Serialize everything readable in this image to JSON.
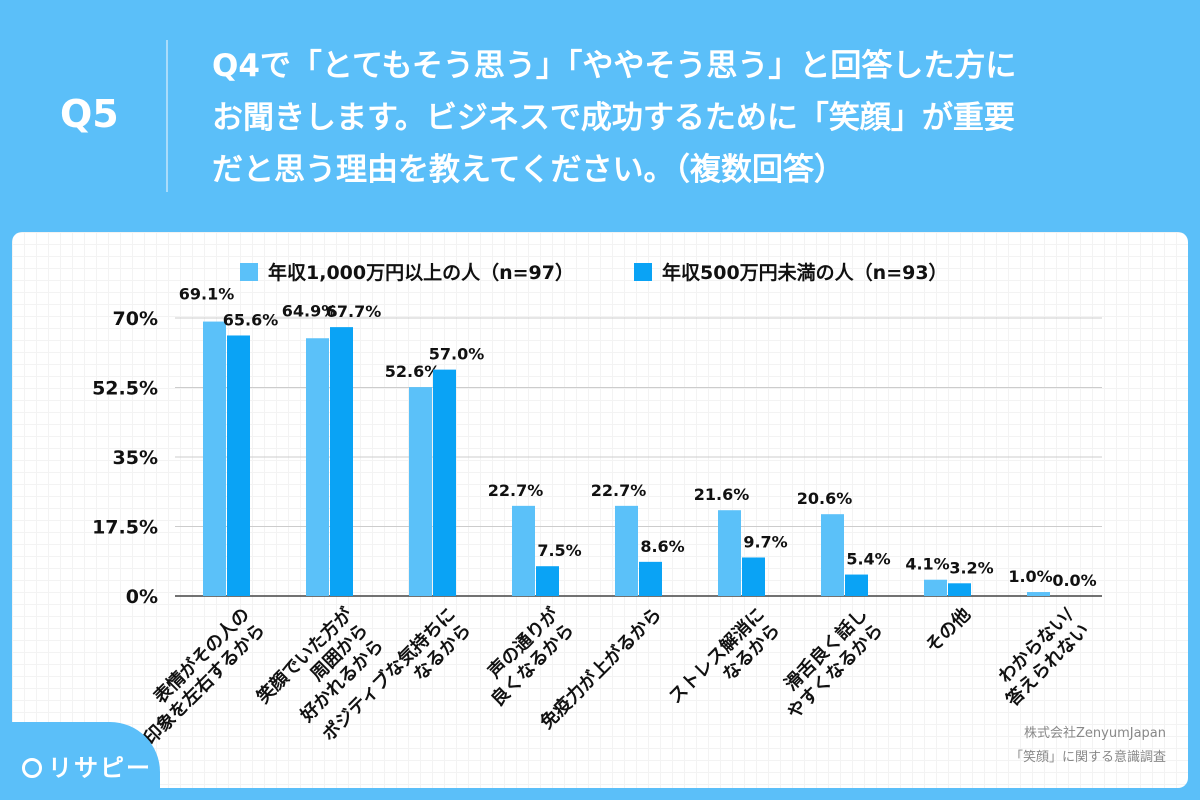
{
  "header": {
    "qnum": "Q5",
    "question": "Q4で「とてもそう思う」「ややそう思う」と回答した方に\nお聞きします。ビジネスで成功するために「笑顔」が重要\nだと思う理由を教えてください。（複数回答）"
  },
  "credit": {
    "line1": "株式会社ZenyumJapan",
    "line2": "「笑顔」に関する意識調査"
  },
  "logo": {
    "text": "リサピー"
  },
  "chart_data": {
    "type": "bar",
    "categories": [
      "表情がその人の\n印象を左右するから",
      "笑顔でいた方が\n周囲から\n好かれるから",
      "ポジティブな気持ちに\nなるから",
      "声の通りが\n良くなるから",
      "免疫力が上がるから",
      "ストレス解消に\nなるから",
      "滑舌良く話し\nやすくなるから",
      "その他",
      "わからない/\n答えられない"
    ],
    "series": [
      {
        "name": "年収1,000万円以上の人（n=97）",
        "color": "#5bc1f9",
        "values": [
          69.1,
          64.9,
          52.6,
          22.7,
          22.7,
          21.6,
          20.6,
          4.1,
          1.0
        ]
      },
      {
        "name": "年収500万円未満の人（n=93）",
        "color": "#0aa3f5",
        "values": [
          65.6,
          67.7,
          57.0,
          7.5,
          8.6,
          9.7,
          5.4,
          3.2,
          0.0
        ]
      }
    ],
    "yticks": [
      "0%",
      "17.5%",
      "35%",
      "52.5%",
      "70%"
    ],
    "ytick_values": [
      0,
      17.5,
      35,
      52.5,
      70
    ],
    "ylim": [
      0,
      70
    ],
    "legend": "top",
    "grid": true
  }
}
